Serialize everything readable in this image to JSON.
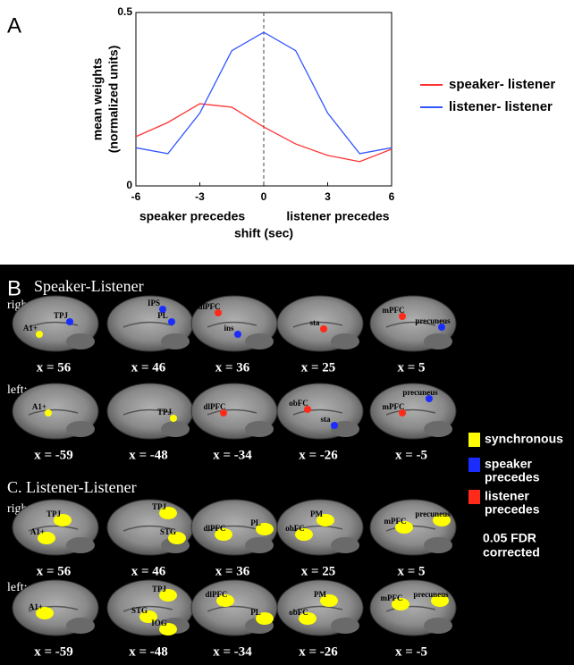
{
  "chart_data": {
    "type": "line",
    "label": "A",
    "ylabel": [
      "mean weights",
      "(normalized units)"
    ],
    "xlabel": "shift (sec)",
    "annotations": [
      "speaker precedes",
      "listener precedes"
    ],
    "x": [
      -6,
      -4.5,
      -3,
      -1.5,
      0,
      1.5,
      3,
      4.5,
      6
    ],
    "series": [
      {
        "name": "speaker- listener",
        "color": "#ff3333",
        "values": [
          0.142,
          0.183,
          0.237,
          0.227,
          0.17,
          0.121,
          0.088,
          0.07,
          0.106
        ]
      },
      {
        "name": "listener- listener",
        "color": "#3355ff",
        "values": [
          0.11,
          0.093,
          0.21,
          0.39,
          0.443,
          0.39,
          0.21,
          0.093,
          0.11
        ]
      }
    ],
    "xlim": [
      -6,
      6
    ],
    "xticks": [
      -6,
      -3,
      0,
      3,
      6
    ],
    "ylim": [
      0,
      0.5
    ],
    "yticks": [
      0,
      0.5
    ],
    "vline": 0
  },
  "brains": {
    "panels": [
      {
        "label": "B",
        "title": "Speaker-Listener",
        "rows": [
          {
            "side": "right:",
            "brains": [
              {
                "coord": "x = 56",
                "regions": [
                  "A1+",
                  "TPJ"
                ]
              },
              {
                "coord": "x = 46",
                "regions": [
                  "IPS",
                  "PL"
                ]
              },
              {
                "coord": "x = 36",
                "regions": [
                  "dlPFC",
                  "ins"
                ]
              },
              {
                "coord": "x = 25",
                "regions": [
                  "sta"
                ]
              },
              {
                "coord": "x = 5",
                "regions": [
                  "mPFC",
                  "precuneus"
                ]
              }
            ]
          },
          {
            "side": "left:",
            "brains": [
              {
                "coord": "x = -59",
                "regions": [
                  "A1+"
                ]
              },
              {
                "coord": "x = -48",
                "regions": [
                  "TPJ"
                ]
              },
              {
                "coord": "x = -34",
                "regions": [
                  "dlPFC"
                ]
              },
              {
                "coord": "x = -26",
                "regions": [
                  "obFC",
                  "sta"
                ]
              },
              {
                "coord": "x = -5",
                "regions": [
                  "precuneus",
                  "mPFC"
                ]
              }
            ]
          }
        ]
      },
      {
        "title": "C. Listener-Listener",
        "rows": [
          {
            "side": "right:",
            "brains": [
              {
                "coord": "x = 56",
                "regions": [
                  "TPJ",
                  "A1+"
                ]
              },
              {
                "coord": "x = 46",
                "regions": [
                  "TPJ",
                  "STG"
                ]
              },
              {
                "coord": "x = 36",
                "regions": [
                  "dlPFC",
                  "PL"
                ]
              },
              {
                "coord": "x = 25",
                "regions": [
                  "PM",
                  "obFC"
                ]
              },
              {
                "coord": "x = 5",
                "regions": [
                  "mPFC",
                  "precuneus"
                ]
              }
            ]
          },
          {
            "side": "left:",
            "brains": [
              {
                "coord": "x = -59",
                "regions": [
                  "A1+"
                ]
              },
              {
                "coord": "x = -48",
                "regions": [
                  "TPJ",
                  "STG",
                  "IOG"
                ]
              },
              {
                "coord": "x = -34",
                "regions": [
                  "dlPFC",
                  "PL"
                ]
              },
              {
                "coord": "x = -26",
                "regions": [
                  "PM",
                  "obFC"
                ]
              },
              {
                "coord": "x = -5",
                "regions": [
                  "mPFC",
                  "precuneus"
                ]
              }
            ]
          }
        ]
      }
    ],
    "legend": [
      {
        "lines": [
          "synchronous"
        ],
        "color": "#ffff00"
      },
      {
        "lines": [
          "speaker",
          "precedes"
        ],
        "color": "#1a2cff"
      },
      {
        "lines": [
          "listener",
          "precedes"
        ],
        "color": "#ff2a1a"
      }
    ],
    "note": [
      "0.05 FDR",
      "corrected"
    ]
  }
}
